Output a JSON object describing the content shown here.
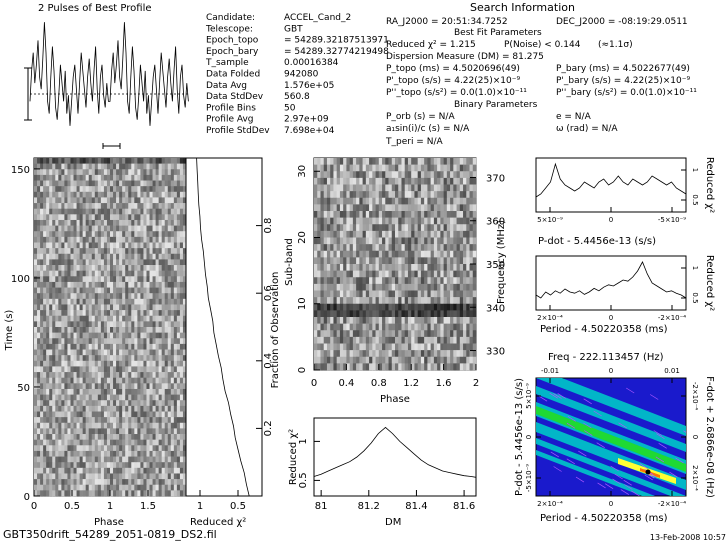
{
  "top_left_title": "2 Pulses of Best Profile",
  "header_title": "Search Information",
  "info_left": [
    {
      "label": "Candidate:",
      "value": "ACCEL_Cand_2"
    },
    {
      "label": "Telescope:",
      "value": "GBT"
    },
    {
      "label": "Epoch_topo",
      "value": "= 54289.32187513971"
    },
    {
      "label": "Epoch_bary",
      "value": "= 54289.32774219498"
    },
    {
      "label": "T_sample",
      "value": "0.00016384"
    },
    {
      "label": "Data Folded",
      "value": "942080"
    },
    {
      "label": "Data Avg",
      "value": "1.576e+05"
    },
    {
      "label": "Data StdDev",
      "value": "560.8"
    },
    {
      "label": "Profile Bins",
      "value": "50"
    },
    {
      "label": "Profile Avg",
      "value": "2.97e+09"
    },
    {
      "label": "Profile StdDev",
      "value": "7.698e+04"
    }
  ],
  "info_right": {
    "ra": "RA_J2000 = 20:51:34.7252",
    "dec": "DEC_J2000 = -08:19:29.0511",
    "best_fit_title": "Best Fit Parameters",
    "reduced_chi2": "Reduced χ² = 1.215",
    "p_noise": "P(Noise) < 0.144",
    "sigma": "(≈1.1σ)",
    "dm": "Dispersion Measure (DM) = 81.275",
    "p_topo": "P_topo (ms) = 4.5020696(49)",
    "p_bary": "P_bary (ms) = 4.5022677(49)",
    "pd_topo": "P'_topo (s/s) = 4.22(25)×10⁻⁹",
    "pd_bary": "P'_bary (s/s) = 4.22(25)×10⁻⁹",
    "pdd_topo": "P''_topo (s/s²) = 0.0(1.0)×10⁻¹¹",
    "pdd_bary": "P''_bary (s/s²) = 0.0(1.0)×10⁻¹¹",
    "binary_title": "Binary Parameters",
    "p_orb": "P_orb (s) = N/A",
    "e": "e = N/A",
    "asini": "a₁sin(i)/c (s) = N/A",
    "omega": "ω (rad) = N/A",
    "t_peri": "T_peri = N/A"
  },
  "footer_left": "GBT350drift_54289_2051-0819_DS2.fil",
  "footer_right": "13-Feb-2008 10:57",
  "chart_data": [
    {
      "id": "profile",
      "type": "line",
      "title": "2 Pulses of Best Profile",
      "x": [
        0,
        0.02,
        0.04,
        0.06,
        0.08,
        0.1,
        0.12,
        0.14,
        0.16,
        0.18,
        0.2,
        0.22,
        0.24,
        0.26,
        0.28,
        0.3,
        0.32,
        0.34,
        0.36,
        0.38,
        0.4,
        0.42,
        0.44,
        0.46,
        0.48,
        0.5,
        0.52,
        0.54,
        0.56,
        0.58,
        0.6,
        0.62,
        0.64,
        0.66,
        0.68,
        0.7,
        0.72,
        0.74,
        0.76,
        0.78,
        0.8,
        0.82,
        0.84,
        0.86,
        0.88,
        0.9,
        0.92,
        0.94,
        0.96,
        0.98,
        1.0,
        1.02,
        1.04,
        1.06,
        1.08,
        1.1,
        1.12,
        1.14,
        1.16,
        1.18,
        1.2,
        1.22,
        1.24,
        1.26,
        1.28,
        1.3,
        1.32,
        1.34,
        1.36,
        1.38,
        1.4,
        1.42,
        1.44,
        1.46,
        1.48,
        1.5,
        1.52,
        1.54,
        1.56,
        1.58,
        1.6,
        1.62,
        1.64,
        1.66,
        1.68,
        1.7,
        1.72,
        1.74,
        1.76,
        1.78,
        1.8,
        1.82,
        1.84,
        1.86,
        1.88,
        1.9,
        1.92,
        1.94,
        1.96,
        1.98
      ],
      "values": [
        0.3,
        0.55,
        0.7,
        0.45,
        0.6,
        0.8,
        0.5,
        0.4,
        0.65,
        0.95,
        0.7,
        0.3,
        0.2,
        0.5,
        0.75,
        0.55,
        0.25,
        0.15,
        0.35,
        0.6,
        0.45,
        0.3,
        0.55,
        0.2,
        0.35,
        0.1,
        0.3,
        0.5,
        0.6,
        0.4,
        0.2,
        0.45,
        0.7,
        0.55,
        0.4,
        0.25,
        0.5,
        0.65,
        0.45,
        0.3,
        0.55,
        0.75,
        0.4,
        0.2,
        0.5,
        0.6,
        0.35,
        0.25,
        0.45,
        0.3,
        0.3,
        0.55,
        0.7,
        0.45,
        0.6,
        0.8,
        0.5,
        0.4,
        0.65,
        0.95,
        0.7,
        0.3,
        0.2,
        0.5,
        0.75,
        0.55,
        0.25,
        0.15,
        0.35,
        0.6,
        0.45,
        0.3,
        0.55,
        0.2,
        0.35,
        0.1,
        0.3,
        0.5,
        0.6,
        0.4,
        0.2,
        0.45,
        0.7,
        0.55,
        0.4,
        0.25,
        0.5,
        0.65,
        0.45,
        0.3,
        0.55,
        0.75,
        0.4,
        0.2,
        0.5,
        0.6,
        0.35,
        0.25,
        0.45,
        0.3
      ],
      "ylim": [
        0,
        1
      ]
    },
    {
      "id": "time_phase",
      "type": "heatmap",
      "xlabel": "Phase",
      "ylabel": "Time (s)",
      "xlim": [
        0,
        2
      ],
      "ylim": [
        0,
        155
      ],
      "xticks": [
        "0",
        "0.5",
        "1",
        "1.5"
      ],
      "yticks": [
        "0",
        "50",
        "100",
        "150"
      ]
    },
    {
      "id": "reduced_chi2_time",
      "type": "line",
      "xlabel": "Reduced χ²",
      "ylabel": "Fraction of Observation",
      "xticks": [
        "1",
        "0.5"
      ],
      "yticks": [
        "0.2",
        "0.4",
        "0.6",
        "0.8"
      ],
      "values": [
        0.05,
        0.1,
        0.14,
        0.2,
        0.25,
        0.3,
        0.33,
        0.38,
        0.42,
        0.48,
        0.52,
        0.55,
        0.6,
        0.64,
        0.68,
        0.7,
        0.74,
        0.78,
        0.8,
        0.83,
        0.85,
        0.87,
        0.9,
        0.92,
        0.93,
        0.95,
        0.96,
        0.97,
        0.98,
        0.99
      ]
    },
    {
      "id": "subband_phase",
      "type": "heatmap",
      "xlabel": "Phase",
      "ylabel": "Sub-band",
      "y2label": "Frequency (MHz)",
      "xlim": [
        0,
        2
      ],
      "xticks": [
        "0",
        "0.4",
        "0.8",
        "1.2",
        "1.6",
        "2"
      ],
      "yticks": [
        "0",
        "10",
        "20",
        "30"
      ],
      "y2ticks": [
        "330",
        "340",
        "350",
        "360",
        "370"
      ]
    },
    {
      "id": "dm_chi2",
      "type": "line",
      "xlabel": "DM",
      "ylabel": "Reduced χ²",
      "xlim": [
        80.97,
        81.65
      ],
      "xticks": [
        "81",
        "81.2",
        "81.4",
        "81.6"
      ],
      "yticks": [
        "0.5",
        "1"
      ],
      "x": [
        80.97,
        81.0,
        81.03,
        81.06,
        81.09,
        81.12,
        81.15,
        81.18,
        81.21,
        81.24,
        81.27,
        81.3,
        81.33,
        81.36,
        81.39,
        81.42,
        81.45,
        81.48,
        81.51,
        81.54,
        81.57,
        81.6,
        81.63,
        81.65
      ],
      "values": [
        0.55,
        0.58,
        0.62,
        0.66,
        0.7,
        0.74,
        0.8,
        0.88,
        0.98,
        1.1,
        1.18,
        1.1,
        1.0,
        0.92,
        0.84,
        0.76,
        0.7,
        0.66,
        0.62,
        0.6,
        0.58,
        0.56,
        0.55,
        0.54
      ],
      "ylim": [
        0.3,
        1.3
      ]
    },
    {
      "id": "pdot_chi2",
      "type": "line",
      "xlabel": "P-dot - 5.4456e-13 (s/s)",
      "ylabel": "Reduced χ²",
      "xticks": [
        "5×10⁻⁹",
        "0",
        "-5×10⁻⁹"
      ],
      "yticks": [
        "0.5",
        "1"
      ],
      "values": [
        0.55,
        0.6,
        0.7,
        0.8,
        1.1,
        0.85,
        0.75,
        0.7,
        0.65,
        0.7,
        0.8,
        0.75,
        0.7,
        0.8,
        0.85,
        0.75,
        0.8,
        0.9,
        0.8,
        0.75,
        0.85,
        0.8,
        0.75,
        0.8,
        0.9,
        0.85,
        0.8,
        0.75,
        0.8,
        0.7,
        0.65,
        0.6
      ],
      "ylim": [
        0.3,
        1.2
      ]
    },
    {
      "id": "period_chi2",
      "type": "line",
      "xlabel": "Period - 4.50220358 (ms)",
      "ylabel": "Reduced χ²",
      "xticks": [
        "2×10⁻⁴",
        "0",
        "-2×10⁻⁴"
      ],
      "yticks": [
        "0.5",
        "1"
      ],
      "values": [
        0.55,
        0.5,
        0.6,
        0.55,
        0.62,
        0.58,
        0.65,
        0.6,
        0.58,
        0.62,
        0.56,
        0.6,
        0.66,
        0.62,
        0.68,
        0.72,
        0.7,
        0.75,
        0.8,
        0.78,
        0.85,
        0.95,
        1.1,
        0.9,
        0.75,
        0.7,
        0.65,
        0.6,
        0.62,
        0.58,
        0.55,
        0.5
      ],
      "ylim": [
        0.3,
        1.2
      ]
    },
    {
      "id": "p_pdot",
      "type": "heatmap",
      "title": "Freq - 222.113457 (Hz)",
      "xlabel": "Period - 4.50220358 (ms)",
      "ylabel": "P-dot - 5.4456e-13 (s/s)",
      "y2label": "F-dot + 2.6866e-08 (Hz)",
      "xticks": [
        "2×10⁻⁴",
        "0",
        "-2×10⁻⁴"
      ],
      "x2ticks": [
        "-0.01",
        "0",
        "0.01"
      ],
      "yticks": [
        "5×10⁻⁹",
        "0",
        "-5×10⁻⁹"
      ],
      "y2ticks": [
        "-2×10⁻⁴",
        "0",
        "2×10⁻⁴"
      ]
    }
  ]
}
